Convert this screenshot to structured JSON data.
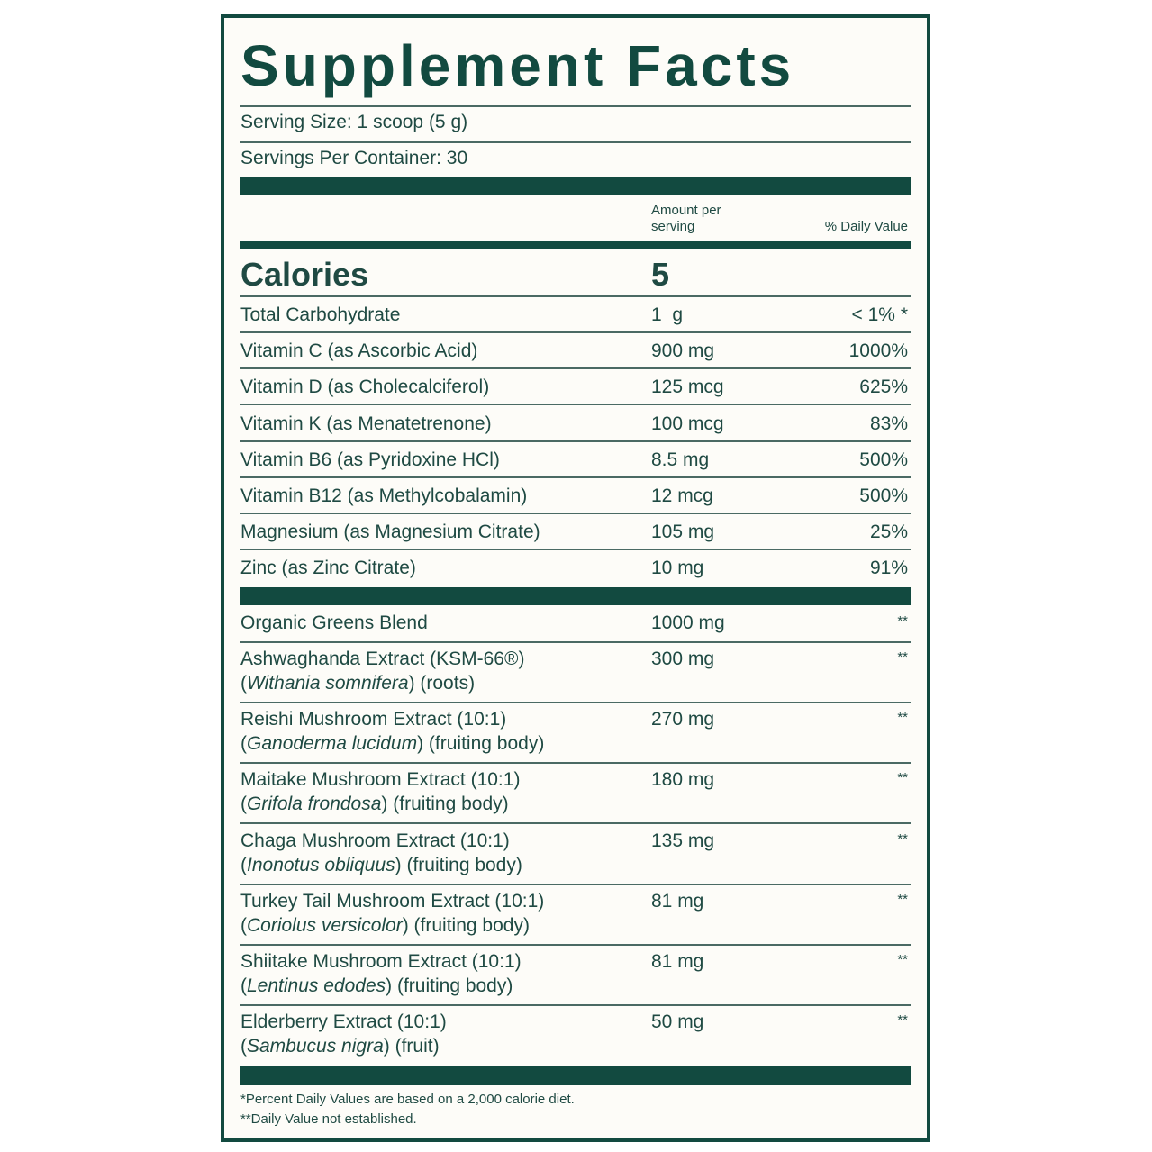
{
  "title": "Supplement Facts",
  "serving_size": "Serving Size: 1 scoop (5 g)",
  "servings_per_container": "Servings Per Container: 30",
  "header": {
    "amount": "Amount per serving",
    "amount_line1": "Amount per",
    "amount_line2": "serving",
    "daily_value": "% Daily Value"
  },
  "calories": {
    "label": "Calories",
    "value": "5"
  },
  "nutrients": [
    {
      "name": "Total Carbohydrate",
      "amount": "1  g",
      "dv": "< 1% *"
    },
    {
      "name": "Vitamin C (as Ascorbic Acid)",
      "amount": "900 mg",
      "dv": "1000%"
    },
    {
      "name": "Vitamin D (as Cholecalciferol)",
      "amount": "125 mcg",
      "dv": "625%"
    },
    {
      "name": "Vitamin K (as Menatetrenone)",
      "amount": "100 mcg",
      "dv": "83%"
    },
    {
      "name": "Vitamin B6 (as Pyridoxine HCl)",
      "amount": "8.5 mg",
      "dv": "500%"
    },
    {
      "name": "Vitamin B12 (as Methylcobalamin)",
      "amount": "12 mcg",
      "dv": "500%"
    },
    {
      "name": "Magnesium (as Magnesium Citrate)",
      "amount": "105 mg",
      "dv": "25%"
    },
    {
      "name": "Zinc (as Zinc Citrate)",
      "amount": "10 mg",
      "dv": "91%"
    }
  ],
  "blend": {
    "name": "Organic Greens Blend",
    "amount": "1000 mg",
    "dv": "**"
  },
  "extracts": [
    {
      "name": "Ashwaghanda Extract (KSM-66®)",
      "latin": "Withania somnifera",
      "part": "(roots)",
      "amount": "300 mg",
      "dv": "**"
    },
    {
      "name": "Reishi Mushroom Extract (10:1)",
      "latin": "Ganoderma lucidum",
      "part": "(fruiting body)",
      "amount": "270 mg",
      "dv": "**"
    },
    {
      "name": "Maitake Mushroom Extract (10:1)",
      "latin": "Grifola frondosa",
      "part": "(fruiting body)",
      "amount": "180 mg",
      "dv": "**"
    },
    {
      "name": "Chaga Mushroom Extract (10:1)",
      "latin": "Inonotus obliquus",
      "part": "(fruiting body)",
      "amount": "135 mg",
      "dv": "**"
    },
    {
      "name": "Turkey Tail Mushroom Extract (10:1)",
      "latin": "Coriolus versicolor",
      "part": "(fruiting body)",
      "amount": "81 mg",
      "dv": "**"
    },
    {
      "name": "Shiitake Mushroom Extract (10:1)",
      "latin": "Lentinus edodes",
      "part": "(fruiting body)",
      "amount": "81 mg",
      "dv": "**"
    },
    {
      "name": "Elderberry Extract (10:1)",
      "latin": "Sambucus nigra",
      "part": "(fruit)",
      "amount": "50 mg",
      "dv": "**"
    }
  ],
  "footnotes": [
    "*Percent Daily Values are based on a 2,000 calorie diet.",
    "**Daily Value not established."
  ],
  "colors": {
    "brand_green": "#124a40",
    "text": "#1f4a43",
    "background": "#fdfcf8"
  }
}
